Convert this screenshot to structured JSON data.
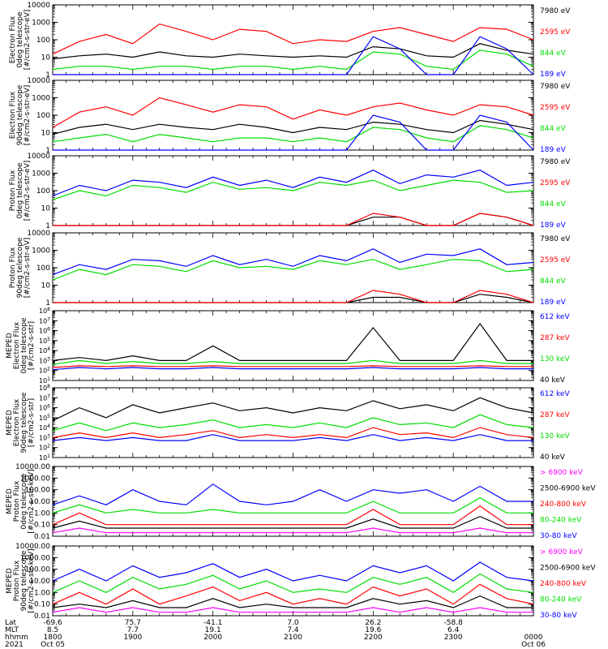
{
  "chart_data": [
    {
      "type": "line",
      "ylabel": [
        "Electron Flux",
        "0deg telescope",
        "[#/cm2-s-str-eV]"
      ],
      "ylim": [
        1,
        10000
      ],
      "yscale": "log",
      "yticks": [
        "1",
        "10",
        "100",
        "1000",
        "10000"
      ],
      "series": [
        {
          "name": "7980 eV",
          "color": "#000000"
        },
        {
          "name": "2595 eV",
          "color": "#ff0000"
        },
        {
          "name": "844 eV",
          "color": "#00dd00"
        },
        {
          "name": "189 eV",
          "color": "#0000ff"
        }
      ],
      "x": [
        1800,
        1820,
        1840,
        1900,
        1920,
        1940,
        2000,
        2020,
        2040,
        2100,
        2120,
        2140,
        2200,
        2220,
        2240,
        2300,
        2320,
        2340,
        0
      ],
      "values": {
        "7980 eV": [
          8,
          12,
          15,
          10,
          20,
          12,
          10,
          15,
          12,
          10,
          12,
          10,
          40,
          30,
          12,
          10,
          60,
          25,
          15
        ],
        "2595 eV": [
          15,
          80,
          200,
          60,
          800,
          300,
          100,
          400,
          300,
          60,
          100,
          80,
          300,
          500,
          200,
          80,
          500,
          400,
          100
        ],
        "844 eV": [
          2,
          3,
          3,
          2,
          3,
          3,
          2,
          3,
          3,
          2,
          3,
          2,
          20,
          15,
          3,
          2,
          25,
          15,
          3
        ],
        "189 eV": [
          1,
          1,
          1,
          1,
          1,
          1,
          1,
          1,
          1,
          1,
          1,
          1,
          150,
          30,
          1,
          1,
          150,
          30,
          1
        ]
      }
    },
    {
      "type": "line",
      "ylabel": [
        "Electron Flux",
        "90deg telescope",
        "[#/cm2-s-str-eV]"
      ],
      "ylim": [
        1,
        10000
      ],
      "yscale": "log",
      "yticks": [
        "1",
        "10",
        "100",
        "1000",
        "10000"
      ],
      "series": [
        {
          "name": "7980 eV",
          "color": "#000000"
        },
        {
          "name": "2595 eV",
          "color": "#ff0000"
        },
        {
          "name": "844 eV",
          "color": "#00dd00"
        },
        {
          "name": "189 eV",
          "color": "#0000ff"
        }
      ],
      "x": [
        1800,
        1820,
        1840,
        1900,
        1920,
        1940,
        2000,
        2020,
        2040,
        2100,
        2120,
        2140,
        2200,
        2220,
        2240,
        2300,
        2320,
        2340,
        0
      ],
      "values": {
        "7980 eV": [
          8,
          20,
          30,
          15,
          30,
          20,
          15,
          30,
          20,
          10,
          20,
          15,
          40,
          30,
          15,
          10,
          50,
          30,
          15
        ],
        "2595 eV": [
          20,
          150,
          300,
          100,
          1000,
          400,
          150,
          400,
          300,
          60,
          200,
          100,
          300,
          500,
          200,
          100,
          400,
          300,
          100
        ],
        "844 eV": [
          3,
          5,
          8,
          3,
          8,
          5,
          3,
          5,
          5,
          3,
          5,
          3,
          20,
          15,
          5,
          3,
          25,
          15,
          5
        ],
        "189 eV": [
          1,
          1,
          1,
          1,
          1,
          1,
          1,
          1,
          1,
          1,
          1,
          1,
          100,
          40,
          1,
          1,
          100,
          40,
          1
        ]
      }
    },
    {
      "type": "line",
      "ylabel": [
        "Proton Flux",
        "0deg telescope",
        "[#/cm2-s-str-eV]"
      ],
      "ylim": [
        1,
        10000
      ],
      "yscale": "log",
      "yticks": [
        "1",
        "10",
        "100",
        "1000",
        "10000"
      ],
      "series": [
        {
          "name": "7980 eV",
          "color": "#000000"
        },
        {
          "name": "2595 eV",
          "color": "#ff0000"
        },
        {
          "name": "844 eV",
          "color": "#00dd00"
        },
        {
          "name": "189 eV",
          "color": "#0000ff"
        }
      ],
      "x": [
        1800,
        1820,
        1840,
        1900,
        1920,
        1940,
        2000,
        2020,
        2040,
        2100,
        2120,
        2140,
        2200,
        2220,
        2240,
        2300,
        2320,
        2340,
        0
      ],
      "values": {
        "7980 eV": [
          1,
          1,
          1,
          1,
          1,
          1,
          1,
          1,
          1,
          1,
          1,
          1,
          3,
          3,
          1,
          1,
          5,
          3,
          1
        ],
        "2595 eV": [
          1,
          1,
          1,
          1,
          1,
          1,
          1,
          1,
          1,
          1,
          1,
          1,
          5,
          3,
          1,
          1,
          5,
          3,
          1
        ],
        "844 eV": [
          30,
          100,
          50,
          200,
          150,
          80,
          300,
          120,
          150,
          100,
          300,
          200,
          400,
          100,
          200,
          400,
          300,
          80,
          100
        ],
        "189 eV": [
          50,
          200,
          100,
          400,
          300,
          150,
          600,
          200,
          400,
          150,
          600,
          300,
          1500,
          250,
          800,
          600,
          1500,
          200,
          300
        ]
      }
    },
    {
      "type": "line",
      "ylabel": [
        "Proton Flux",
        "90deg telescope",
        "[#/cm2-s-str-eV]"
      ],
      "ylim": [
        1,
        10000
      ],
      "yscale": "log",
      "yticks": [
        "1",
        "10",
        "100",
        "1000",
        "10000"
      ],
      "series": [
        {
          "name": "7980 eV",
          "color": "#000000"
        },
        {
          "name": "2595 eV",
          "color": "#ff0000"
        },
        {
          "name": "844 eV",
          "color": "#00dd00"
        },
        {
          "name": "189 eV",
          "color": "#0000ff"
        }
      ],
      "x": [
        1800,
        1820,
        1840,
        1900,
        1920,
        1940,
        2000,
        2020,
        2040,
        2100,
        2120,
        2140,
        2200,
        2220,
        2240,
        2300,
        2320,
        2340,
        0
      ],
      "values": {
        "7980 eV": [
          1,
          1,
          1,
          1,
          1,
          1,
          1,
          1,
          1,
          1,
          1,
          1,
          2,
          2,
          1,
          1,
          3,
          2,
          1
        ],
        "2595 eV": [
          1,
          1,
          1,
          1,
          1,
          1,
          1,
          1,
          1,
          1,
          1,
          1,
          5,
          3,
          1,
          1,
          5,
          3,
          1
        ],
        "844 eV": [
          20,
          80,
          40,
          150,
          120,
          60,
          250,
          100,
          120,
          80,
          250,
          150,
          300,
          80,
          150,
          300,
          250,
          60,
          80
        ],
        "189 eV": [
          40,
          150,
          80,
          300,
          250,
          120,
          500,
          150,
          300,
          120,
          500,
          250,
          1200,
          200,
          600,
          500,
          1200,
          150,
          200
        ]
      }
    },
    {
      "type": "line",
      "ylabel": [
        "MEPED",
        "Electron Flux",
        "0deg telescope",
        "[#/cm2-s-str]"
      ],
      "ylim": [
        10,
        100000000
      ],
      "yscale": "log",
      "yticks": [
        "10^1",
        "10^2",
        "10^3",
        "10^4",
        "10^5",
        "10^6",
        "10^7",
        "10^8"
      ],
      "series": [
        {
          "name": "612 keV",
          "color": "#0000ff"
        },
        {
          "name": "287 keV",
          "color": "#ff0000"
        },
        {
          "name": "130 keV",
          "color": "#00dd00"
        },
        {
          "name": "40 keV",
          "color": "#000000"
        }
      ],
      "x": [
        1800,
        1820,
        1840,
        1900,
        1920,
        1940,
        2000,
        2020,
        2040,
        2100,
        2120,
        2140,
        2200,
        2220,
        2240,
        2300,
        2320,
        2340,
        0
      ],
      "values": {
        "612 keV": [
          120,
          200,
          150,
          200,
          150,
          150,
          200,
          150,
          150,
          150,
          150,
          150,
          200,
          150,
          150,
          150,
          200,
          150,
          150
        ],
        "287 keV": [
          200,
          300,
          250,
          300,
          250,
          250,
          300,
          250,
          250,
          250,
          250,
          250,
          300,
          250,
          250,
          250,
          300,
          250,
          250
        ],
        "130 keV": [
          400,
          1000,
          500,
          800,
          500,
          500,
          800,
          500,
          500,
          500,
          500,
          500,
          1000,
          500,
          500,
          500,
          1000,
          500,
          500
        ],
        "40 keV": [
          1000,
          2000,
          1000,
          3000,
          1000,
          1000,
          30000,
          1000,
          1000,
          1000,
          1000,
          1000,
          2000000,
          1000,
          1000,
          1000,
          5000000,
          1000,
          1000
        ]
      }
    },
    {
      "type": "line",
      "ylabel": [
        "MEPED",
        "Electron Flux",
        "90deg telescope",
        "[#/cm2-s-str]"
      ],
      "ylim": [
        10,
        100000000
      ],
      "yscale": "log",
      "yticks": [
        "10^1",
        "10^2",
        "10^3",
        "10^4",
        "10^5",
        "10^6",
        "10^7",
        "10^8"
      ],
      "series": [
        {
          "name": "612 keV",
          "color": "#0000ff"
        },
        {
          "name": "287 keV",
          "color": "#ff0000"
        },
        {
          "name": "130 keV",
          "color": "#00dd00"
        },
        {
          "name": "40 keV",
          "color": "#000000"
        }
      ],
      "x": [
        1800,
        1820,
        1840,
        1900,
        1920,
        1940,
        2000,
        2020,
        2040,
        2100,
        2120,
        2140,
        2200,
        2220,
        2240,
        2300,
        2320,
        2340,
        0
      ],
      "values": {
        "612 keV": [
          500,
          1000,
          500,
          1000,
          500,
          500,
          2000,
          500,
          500,
          500,
          1000,
          500,
          2000,
          500,
          1000,
          500,
          2000,
          500,
          500
        ],
        "287 keV": [
          1000,
          3000,
          1000,
          3000,
          1000,
          2000,
          5000,
          1000,
          2000,
          1000,
          2000,
          1000,
          10000,
          2000,
          3000,
          1000,
          10000,
          2000,
          1000
        ],
        "130 keV": [
          5000,
          30000,
          5000,
          30000,
          10000,
          20000,
          60000,
          10000,
          20000,
          10000,
          30000,
          10000,
          100000,
          20000,
          30000,
          10000,
          200000,
          20000,
          10000
        ],
        "40 keV": [
          50000,
          1000000,
          100000,
          2000000,
          300000,
          1000000,
          3000000,
          500000,
          1000000,
          300000,
          1000000,
          500000,
          5000000,
          800000,
          2000000,
          500000,
          10000000,
          1000000,
          300000
        ]
      }
    },
    {
      "type": "line",
      "ylabel": [
        "MEPED",
        "Proton Flux",
        "0deg telescope",
        "[#/cm2-s-str-keV]"
      ],
      "ylim": [
        0.01,
        10000
      ],
      "yscale": "log",
      "yticks": [
        "0.01",
        "0.10",
        "1.00",
        "10.00",
        "100.00",
        "1000.00",
        "10000.00"
      ],
      "series": [
        {
          "name": "> 6900 keV",
          "color": "#ff00ff"
        },
        {
          "name": "2500-6900 keV",
          "color": "#000000"
        },
        {
          "name": "240-800 keV",
          "color": "#ff0000"
        },
        {
          "name": "80-240 keV",
          "color": "#00dd00"
        },
        {
          "name": "30-80 keV",
          "color": "#0000ff"
        }
      ],
      "x": [
        1800,
        1820,
        1840,
        1900,
        1920,
        1940,
        2000,
        2020,
        2040,
        2100,
        2120,
        2140,
        2200,
        2220,
        2240,
        2300,
        2320,
        2340,
        0
      ],
      "values": {
        "> 6900 keV": [
          0.02,
          0.05,
          0.02,
          0.02,
          0.02,
          0.02,
          0.02,
          0.02,
          0.02,
          0.02,
          0.02,
          0.02,
          0.05,
          0.02,
          0.02,
          0.02,
          0.05,
          0.02,
          0.02
        ],
        "2500-6900 keV": [
          0.05,
          0.2,
          0.05,
          0.05,
          0.05,
          0.05,
          0.05,
          0.05,
          0.05,
          0.05,
          0.05,
          0.05,
          0.3,
          0.05,
          0.05,
          0.05,
          0.5,
          0.05,
          0.05
        ],
        "240-800 keV": [
          0.1,
          1,
          0.1,
          0.1,
          0.1,
          0.1,
          0.1,
          0.1,
          0.1,
          0.1,
          0.1,
          0.1,
          2,
          0.1,
          0.1,
          0.1,
          4,
          0.1,
          0.1
        ],
        "80-240 keV": [
          1,
          5,
          1,
          2,
          1,
          1,
          2,
          1,
          1,
          1,
          1,
          1,
          10,
          1,
          1,
          1,
          20,
          1,
          1
        ],
        "30-80 keV": [
          5,
          30,
          5,
          100,
          10,
          5,
          300,
          10,
          5,
          10,
          100,
          10,
          100,
          50,
          100,
          10,
          200,
          10,
          10
        ]
      }
    },
    {
      "type": "line",
      "ylabel": [
        "MEPED",
        "Proton Flux",
        "90deg telescope",
        "[#/cm2-s-str-keV]"
      ],
      "ylim": [
        0.01,
        10000
      ],
      "yscale": "log",
      "yticks": [
        "0.01",
        "0.10",
        "1.00",
        "10.00",
        "100.00",
        "1000.00",
        "10000.00"
      ],
      "series": [
        {
          "name": "> 6900 keV",
          "color": "#ff00ff"
        },
        {
          "name": "2500-6900 keV",
          "color": "#000000"
        },
        {
          "name": "240-800 keV",
          "color": "#ff0000"
        },
        {
          "name": "80-240 keV",
          "color": "#00dd00"
        },
        {
          "name": "30-80 keV",
          "color": "#0000ff"
        }
      ],
      "x": [
        1800,
        1820,
        1840,
        1900,
        1920,
        1940,
        2000,
        2020,
        2040,
        2100,
        2120,
        2140,
        2200,
        2220,
        2240,
        2300,
        2320,
        2340,
        0
      ],
      "values": {
        "> 6900 keV": [
          0.02,
          0.05,
          0.02,
          0.05,
          0.02,
          0.02,
          0.05,
          0.02,
          0.02,
          0.02,
          0.02,
          0.02,
          0.05,
          0.02,
          0.05,
          0.02,
          0.05,
          0.02,
          0.02
        ],
        "2500-6900 keV": [
          0.05,
          0.1,
          0.05,
          0.2,
          0.05,
          0.05,
          0.3,
          0.05,
          0.1,
          0.05,
          0.05,
          0.05,
          0.3,
          0.1,
          0.2,
          0.05,
          0.5,
          0.05,
          0.05
        ],
        "240-800 keV": [
          0.1,
          1,
          0.1,
          2,
          0.1,
          0.5,
          3,
          0.2,
          1,
          0.1,
          0.3,
          0.1,
          3,
          0.5,
          2,
          0.1,
          5,
          0.3,
          0.1
        ],
        "80-240 keV": [
          1,
          10,
          1,
          20,
          2,
          5,
          30,
          2,
          10,
          1,
          2,
          1,
          20,
          5,
          20,
          1,
          40,
          2,
          1
        ],
        "30-80 keV": [
          10,
          100,
          10,
          200,
          20,
          50,
          300,
          20,
          100,
          10,
          30,
          10,
          200,
          50,
          200,
          10,
          400,
          20,
          10
        ]
      }
    }
  ],
  "xaxis": {
    "row_labels": [
      "Lat",
      "MLT",
      "hhmm",
      "2021"
    ],
    "columns": [
      {
        "lat": "-69.6",
        "mlt": "8.5",
        "hhmm": "1800",
        "date": "Oct 05"
      },
      {
        "lat": "75.7",
        "mlt": "7.7",
        "hhmm": "1900",
        "date": ""
      },
      {
        "lat": "-41.1",
        "mlt": "19.1",
        "hhmm": "2000",
        "date": ""
      },
      {
        "lat": "7.0",
        "mlt": "7.4",
        "hhmm": "2100",
        "date": ""
      },
      {
        "lat": "26.2",
        "mlt": "19.6",
        "hhmm": "2200",
        "date": ""
      },
      {
        "lat": "-58.8",
        "mlt": "6.4",
        "hhmm": "2300",
        "date": ""
      },
      {
        "lat": "",
        "mlt": "",
        "hhmm": "0000",
        "date": "Oct 06"
      }
    ]
  }
}
